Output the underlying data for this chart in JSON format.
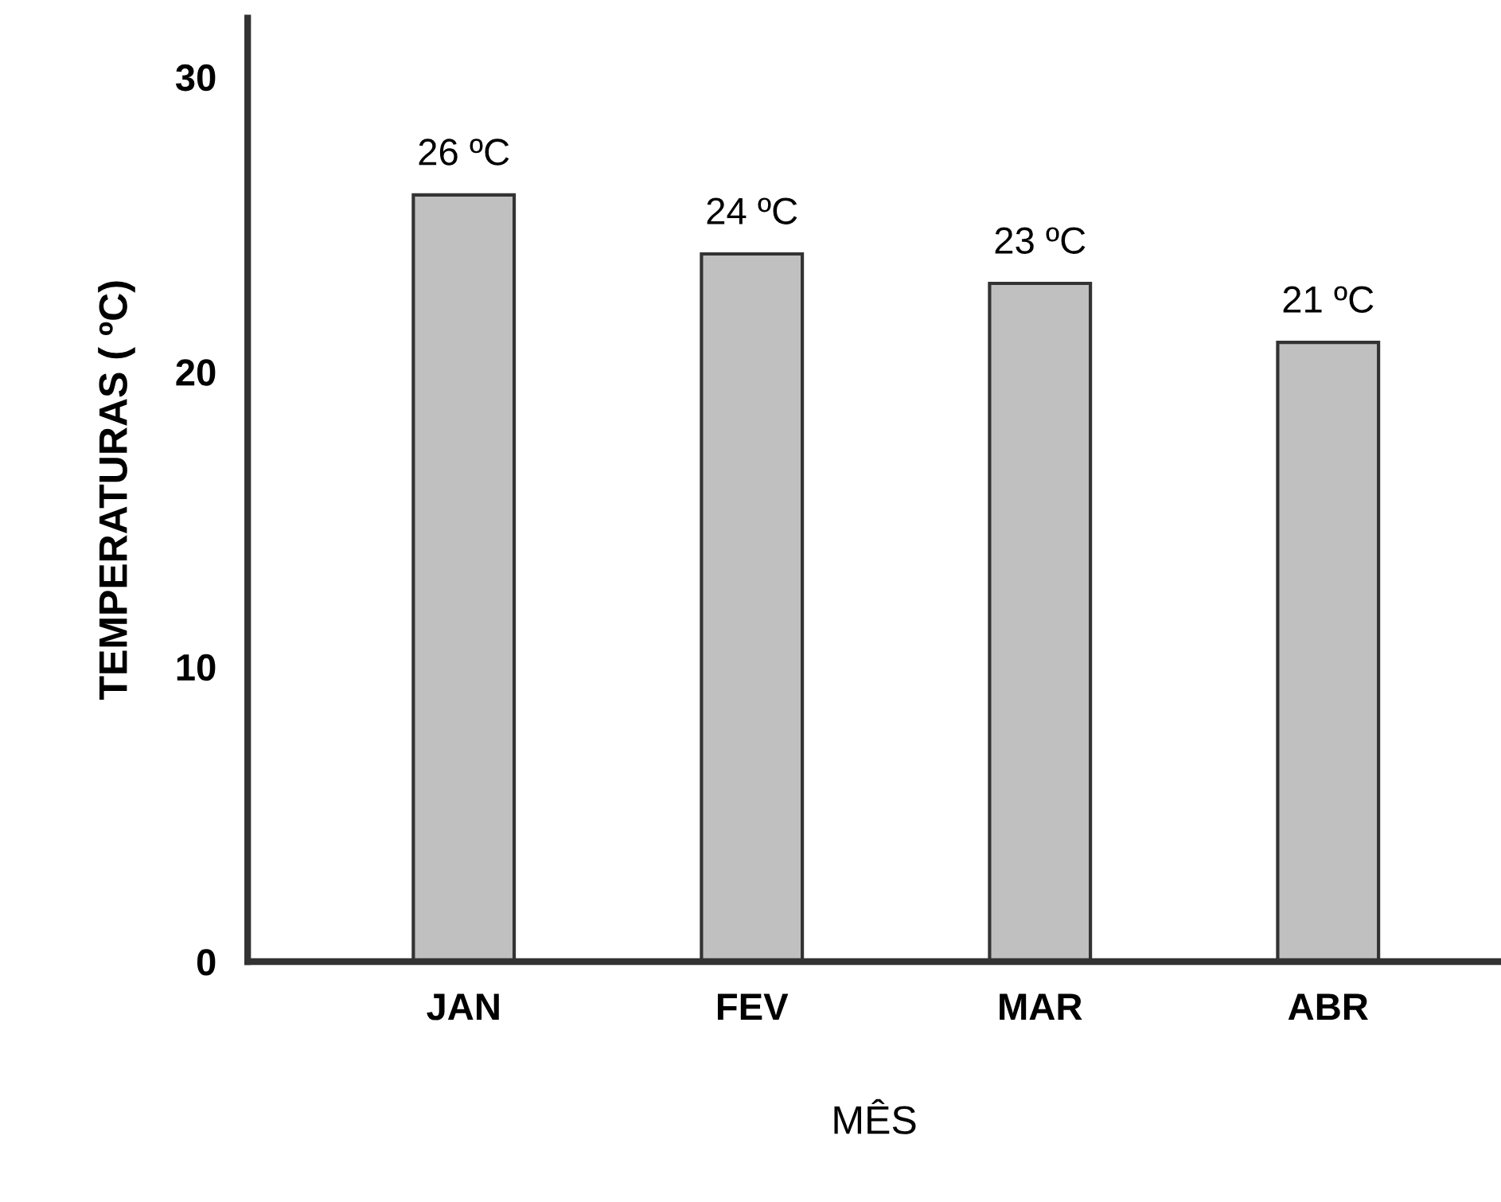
{
  "chart_data": {
    "type": "bar",
    "xlabel": "MÊS",
    "ylabel": "TEMPERATURAS ( ºC)",
    "categories": [
      "JAN",
      "FEV",
      "MAR",
      "ABR"
    ],
    "values": [
      26,
      24,
      23,
      21
    ],
    "value_labels": [
      "26 ºC",
      "24 ºC",
      "23 ºC",
      "21 ºC"
    ],
    "color": "#c0c0c0",
    "ylim": [
      0,
      32
    ],
    "yticks": [
      0,
      10,
      20,
      30
    ],
    "grid": false,
    "legend": false
  }
}
